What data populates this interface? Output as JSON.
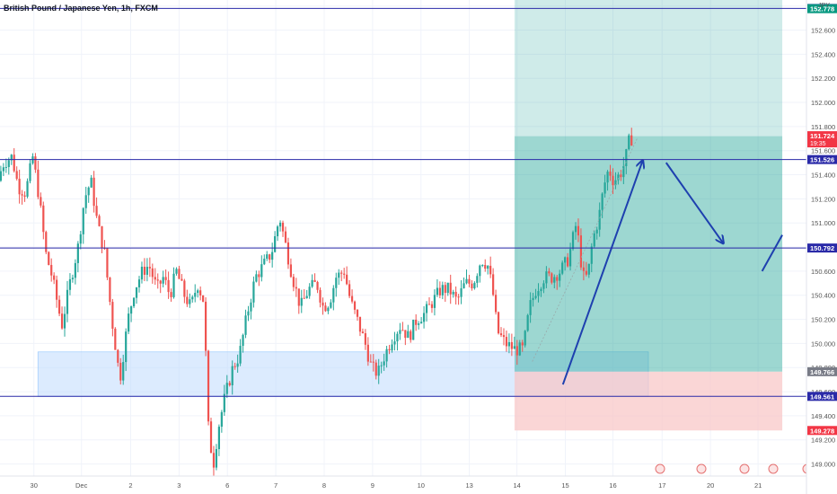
{
  "header": {
    "title": "British Pound / Japanese Yen, 1h, FXCM",
    "currency": "JPY"
  },
  "colors": {
    "up": "#26a69a",
    "down": "#ef5350",
    "hline": "#2a2aa8",
    "arrow": "#1e40af",
    "demand_zone": "#bfdbfe",
    "profit_zone": "#26a69a",
    "loss_zone": "#f8c4c4"
  },
  "chart_data": {
    "type": "candlestick",
    "symbol": "GBPJPY",
    "timeframe": "1h",
    "ylim": [
      148.9,
      152.85
    ],
    "xlim": [
      0,
      1000
    ],
    "y_ticks": [
      "149.000",
      "149.200",
      "149.400",
      "149.600",
      "149.800",
      "150.000",
      "150.200",
      "150.400",
      "150.600",
      "150.800",
      "151.000",
      "151.200",
      "151.400",
      "151.600",
      "151.800",
      "152.000",
      "152.200",
      "152.400",
      "152.600",
      "152.800"
    ],
    "x_ticks": [
      {
        "label": "30",
        "x": 42
      },
      {
        "label": "Dec",
        "x": 101
      },
      {
        "label": "2",
        "x": 162
      },
      {
        "label": "3",
        "x": 222
      },
      {
        "label": "6",
        "x": 282
      },
      {
        "label": "7",
        "x": 342
      },
      {
        "label": "8",
        "x": 402
      },
      {
        "label": "9",
        "x": 462
      },
      {
        "label": "10",
        "x": 522
      },
      {
        "label": "13",
        "x": 582
      },
      {
        "label": "14",
        "x": 641
      },
      {
        "label": "15",
        "x": 701
      },
      {
        "label": "16",
        "x": 760
      },
      {
        "label": "17",
        "x": 821
      },
      {
        "label": "20",
        "x": 881
      },
      {
        "label": "21",
        "x": 940
      }
    ],
    "price_path": [
      [
        0,
        151.35
      ],
      [
        8,
        151.5
      ],
      [
        18,
        151.55
      ],
      [
        26,
        151.3
      ],
      [
        35,
        151.25
      ],
      [
        44,
        151.55
      ],
      [
        52,
        151.2
      ],
      [
        60,
        150.75
      ],
      [
        68,
        150.55
      ],
      [
        80,
        150.15
      ],
      [
        90,
        150.5
      ],
      [
        100,
        150.8
      ],
      [
        108,
        151.2
      ],
      [
        116,
        151.35
      ],
      [
        124,
        151.0
      ],
      [
        133,
        150.75
      ],
      [
        142,
        150.2
      ],
      [
        152,
        149.7
      ],
      [
        162,
        150.2
      ],
      [
        170,
        150.45
      ],
      [
        180,
        150.6
      ],
      [
        188,
        150.65
      ],
      [
        198,
        150.45
      ],
      [
        206,
        150.55
      ],
      [
        214,
        150.4
      ],
      [
        222,
        150.6
      ],
      [
        232,
        150.4
      ],
      [
        240,
        150.3
      ],
      [
        248,
        150.5
      ],
      [
        256,
        150.35
      ],
      [
        262,
        149.25
      ],
      [
        268,
        149.0
      ],
      [
        274,
        149.3
      ],
      [
        282,
        149.55
      ],
      [
        292,
        149.8
      ],
      [
        300,
        149.9
      ],
      [
        310,
        150.25
      ],
      [
        320,
        150.55
      ],
      [
        330,
        150.65
      ],
      [
        340,
        150.75
      ],
      [
        350,
        151.05
      ],
      [
        358,
        150.8
      ],
      [
        366,
        150.55
      ],
      [
        376,
        150.3
      ],
      [
        386,
        150.45
      ],
      [
        396,
        150.5
      ],
      [
        404,
        150.3
      ],
      [
        412,
        150.35
      ],
      [
        420,
        150.55
      ],
      [
        430,
        150.6
      ],
      [
        438,
        150.35
      ],
      [
        446,
        150.2
      ],
      [
        456,
        150.0
      ],
      [
        464,
        149.8
      ],
      [
        472,
        149.75
      ],
      [
        480,
        149.9
      ],
      [
        490,
        150.05
      ],
      [
        500,
        150.15
      ],
      [
        510,
        150.05
      ],
      [
        520,
        150.2
      ],
      [
        530,
        150.25
      ],
      [
        540,
        150.35
      ],
      [
        550,
        150.45
      ],
      [
        560,
        150.45
      ],
      [
        570,
        150.35
      ],
      [
        580,
        150.5
      ],
      [
        590,
        150.5
      ],
      [
        600,
        150.7
      ],
      [
        608,
        150.65
      ],
      [
        614,
        150.45
      ],
      [
        620,
        150.1
      ],
      [
        630,
        150.0
      ],
      [
        642,
        149.95
      ],
      [
        652,
        149.95
      ],
      [
        660,
        150.3
      ],
      [
        668,
        150.45
      ],
      [
        678,
        150.55
      ],
      [
        688,
        150.55
      ],
      [
        698,
        150.6
      ],
      [
        708,
        150.7
      ],
      [
        718,
        151.0
      ],
      [
        726,
        150.55
      ],
      [
        732,
        150.55
      ],
      [
        738,
        150.85
      ],
      [
        746,
        151.05
      ],
      [
        752,
        151.3
      ],
      [
        758,
        151.45
      ],
      [
        764,
        151.35
      ],
      [
        772,
        151.4
      ],
      [
        778,
        151.5
      ],
      [
        784,
        151.7
      ]
    ],
    "horizontal_levels": [
      {
        "price": 152.78,
        "label": "152.780"
      },
      {
        "price": 151.526,
        "label": "151.526"
      },
      {
        "price": 150.792,
        "label": "150.792"
      },
      {
        "price": 149.561,
        "label": "149.561"
      }
    ],
    "price_labels": [
      {
        "price": 152.778,
        "label": "152.778",
        "kind": "green"
      },
      {
        "price": 151.724,
        "label": "151.724",
        "sub": "19:35",
        "kind": "red"
      },
      {
        "price": 149.766,
        "label": "149.766",
        "kind": "gray"
      },
      {
        "price": 149.278,
        "label": "149.278",
        "kind": "red"
      }
    ],
    "zones": [
      {
        "name": "demand-zone",
        "x0": 47,
        "x1": 804,
        "y0": 149.56,
        "y1": 149.93,
        "kind": "demand_zone",
        "opacity": 0.55
      },
      {
        "name": "profit-zone-light",
        "x0": 638,
        "x1": 970,
        "y0": 151.72,
        "y1": 152.95,
        "kind": "profit_zone",
        "opacity": 0.22
      },
      {
        "name": "profit-zone-dark",
        "x0": 638,
        "x1": 970,
        "y0": 149.766,
        "y1": 151.72,
        "kind": "profit_zone",
        "opacity": 0.45
      },
      {
        "name": "loss-zone",
        "x0": 638,
        "x1": 970,
        "y0": 149.278,
        "y1": 149.766,
        "kind": "loss_zone",
        "opacity": 0.7
      }
    ],
    "arrows": [
      {
        "name": "up-arrow",
        "x0": 698,
        "y0": 149.66,
        "x1": 797,
        "y1": 151.52,
        "head": true
      },
      {
        "name": "down-arrow",
        "x0": 826,
        "y0": 151.5,
        "x1": 897,
        "y1": 150.83,
        "head": true
      },
      {
        "name": "up-arrow-right",
        "x0": 945,
        "y0": 150.6,
        "x1": 970,
        "y1": 150.9,
        "head": false
      }
    ],
    "grid": true,
    "legend": "none"
  }
}
